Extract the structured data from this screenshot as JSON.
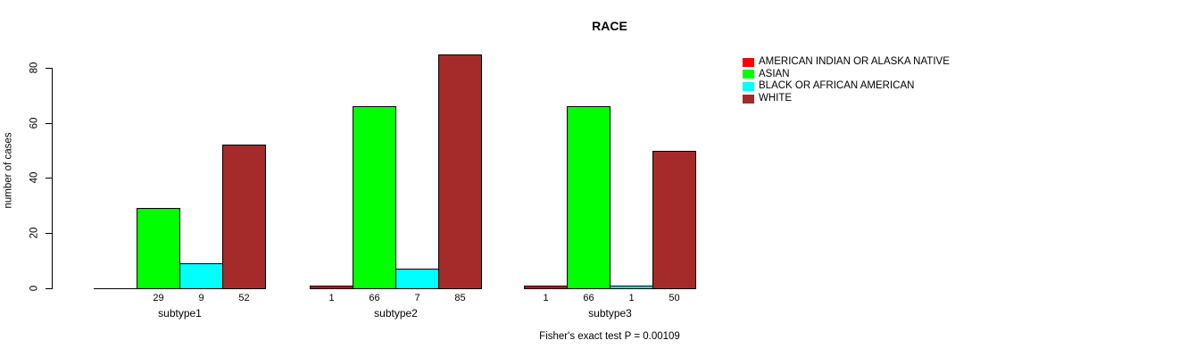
{
  "title": "RACE",
  "ylabel": "number of cases",
  "footer": "Fisher's exact test P = 0.00109",
  "colors": {
    "background": "#ffffff",
    "axis": "#000000",
    "text": "#000000"
  },
  "chart_data": {
    "type": "bar",
    "title": "RACE",
    "xlabel": "",
    "ylabel": "number of cases",
    "categories": [
      "subtype1",
      "subtype2",
      "subtype3"
    ],
    "series": [
      {
        "name": "AMERICAN INDIAN OR ALASKA NATIVE",
        "color": "#ff0000",
        "values": [
          0,
          1,
          1
        ]
      },
      {
        "name": "ASIAN",
        "color": "#00ff00",
        "values": [
          29,
          66,
          66
        ]
      },
      {
        "name": "BLACK OR AFRICAN AMERICAN",
        "color": "#00ffff",
        "values": [
          9,
          7,
          1
        ]
      },
      {
        "name": "WHITE",
        "color": "#a52a2a",
        "values": [
          52,
          85,
          50
        ]
      }
    ],
    "bar_labels": [
      [
        "",
        "29",
        "9",
        "52"
      ],
      [
        "1",
        "66",
        "7",
        "85"
      ],
      [
        "1",
        "66",
        "1",
        "50"
      ]
    ],
    "yticks": [
      0,
      20,
      40,
      60,
      80
    ],
    "ylim": [
      0,
      87
    ],
    "grid": false,
    "legend_position": "right",
    "annotation": "Fisher's exact test P = 0.00109"
  }
}
